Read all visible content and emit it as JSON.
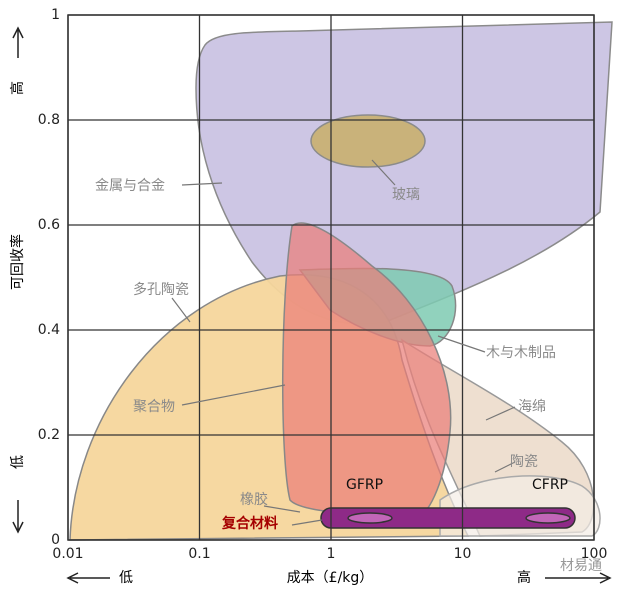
{
  "chart_data": {
    "type": "region-map",
    "xlabel": "成本（£/kg）",
    "ylabel": "可回收率",
    "x_low": "低",
    "x_high": "高",
    "y_low": "低",
    "y_high": "高",
    "xscale": "log",
    "xlim": [
      0.01,
      100
    ],
    "xticks": [
      0.01,
      0.1,
      1,
      10,
      100
    ],
    "ylim": [
      0,
      1
    ],
    "yticks": [
      0,
      0.2,
      0.4,
      0.6,
      0.8,
      1
    ],
    "grid": true,
    "regions": [
      "金属与合金",
      "玻璃",
      "多孔陶瓷",
      "木与木制品",
      "聚合物",
      "海绵",
      "陶瓷",
      "橡胶",
      "复合材料",
      "GFRP",
      "CFRP"
    ],
    "watermark": "材易通"
  }
}
